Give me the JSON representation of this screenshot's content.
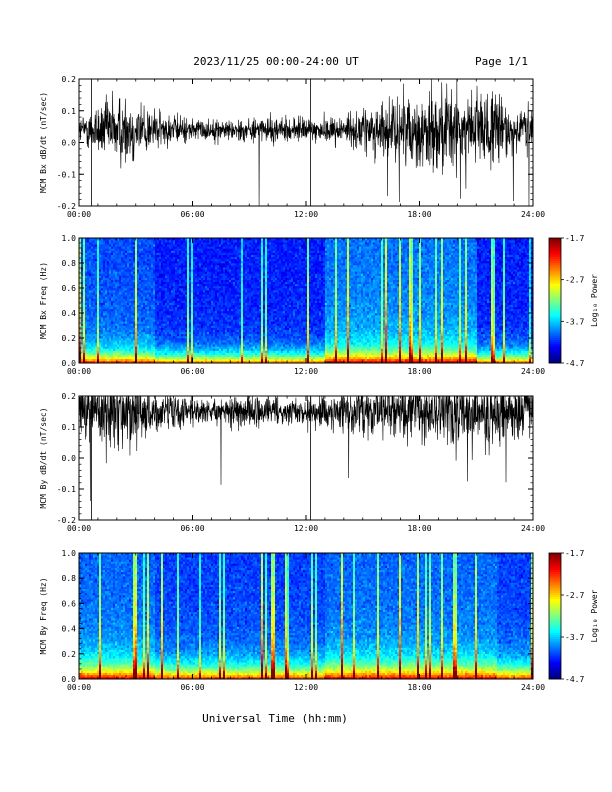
{
  "header": {
    "title": "2023/11/25  00:00-24:00 UT",
    "page": "Page 1/1"
  },
  "footer": {
    "xlabel": "Universal Time (hh:mm)"
  },
  "chart_data": [
    {
      "type": "line",
      "ylabel": "MCM Bx dB/dt (nT/sec)",
      "xlabel": "",
      "xlim": [
        "00:00",
        "24:00"
      ],
      "xticks": [
        "00:00",
        "06:00",
        "12:00",
        "18:00",
        "24:00"
      ],
      "ylim": [
        -0.2,
        0.2
      ],
      "yticks": [
        "-0.2",
        "-0.1",
        "0.0",
        "0.1",
        "0.2"
      ],
      "series": [
        {
          "values_note": "",
          "baseline": 0.04,
          "amplitude_by_hour": [
            0.04,
            0.09,
            0.12,
            0.11,
            0.07,
            0.05,
            0.04,
            0.035,
            0.035,
            0.04,
            0.045,
            0.045,
            0.04,
            0.045,
            0.05,
            0.07,
            0.09,
            0.11,
            0.13,
            0.14,
            0.15,
            0.14,
            0.12,
            0.09
          ]
        }
      ]
    },
    {
      "type": "heatmap",
      "ylabel": "MCM Bx Freq (Hz)",
      "xticks": [
        "00:00",
        "06:00",
        "12:00",
        "18:00",
        "24:00"
      ],
      "ylim": [
        0.0,
        1.0
      ],
      "yticks": [
        "0.0",
        "0.2",
        "0.4",
        "0.6",
        "0.8",
        "1.0"
      ],
      "colorbar": {
        "label": "Log₁₀ Power",
        "ticks": [
          "-1.7",
          "-2.7",
          "-3.7",
          "-4.7"
        ],
        "range": [
          -4.7,
          -1.7
        ]
      }
    },
    {
      "type": "line",
      "ylabel": "MCM By dB/dt (nT/sec)",
      "xlim": [
        "00:00",
        "24:00"
      ],
      "xticks": [
        "00:00",
        "06:00",
        "12:00",
        "18:00",
        "24:00"
      ],
      "ylim": [
        -0.2,
        0.2
      ],
      "yticks": [
        "-0.2",
        "-0.1",
        "0.0",
        "0.1",
        "0.2"
      ],
      "series": [
        {
          "baseline": 0.15,
          "amplitude_by_hour": [
            0.08,
            0.12,
            0.15,
            0.13,
            0.09,
            0.06,
            0.05,
            0.04,
            0.05,
            0.06,
            0.05,
            0.04,
            0.05,
            0.06,
            0.07,
            0.08,
            0.09,
            0.1,
            0.12,
            0.12,
            0.13,
            0.13,
            0.12,
            0.09
          ]
        }
      ]
    },
    {
      "type": "heatmap",
      "ylabel": "MCM By Freq (Hz)",
      "xticks": [
        "00:00",
        "06:00",
        "12:00",
        "18:00",
        "24:00"
      ],
      "ylim": [
        0.0,
        1.0
      ],
      "yticks": [
        "0.0",
        "0.2",
        "0.4",
        "0.6",
        "0.8",
        "1.0"
      ],
      "colorbar": {
        "label": "Log₁₀ Power",
        "ticks": [
          "-1.7",
          "-2.7",
          "-3.7",
          "-4.7"
        ],
        "range": [
          -4.7,
          -1.7
        ]
      }
    }
  ]
}
